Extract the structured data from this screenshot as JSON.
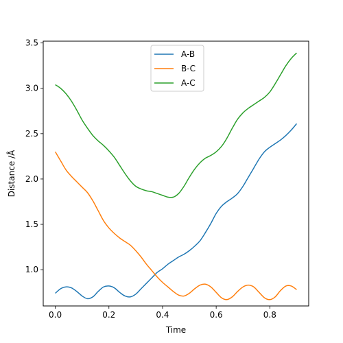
{
  "chart_data": {
    "type": "line",
    "title": "",
    "xlabel": "Time",
    "ylabel": "Distance /Å",
    "xlim": [
      -0.045,
      0.945
    ],
    "ylim": [
      0.6,
      3.52
    ],
    "xticks": [
      0.0,
      0.2,
      0.4,
      0.6,
      0.8
    ],
    "xtick_labels": [
      "0.0",
      "0.2",
      "0.4",
      "0.6",
      "0.8"
    ],
    "yticks": [
      1.0,
      1.5,
      2.0,
      2.5,
      3.0,
      3.5
    ],
    "ytick_labels": [
      "1.0",
      "1.5",
      "2.0",
      "2.5",
      "3.0",
      "3.5"
    ],
    "grid": false,
    "legend_position": "upper-center",
    "series": [
      {
        "name": "A-B",
        "color": "#1f77b4",
        "x": [
          0.0,
          0.02,
          0.04,
          0.06,
          0.08,
          0.1,
          0.12,
          0.14,
          0.16,
          0.18,
          0.2,
          0.22,
          0.24,
          0.26,
          0.28,
          0.3,
          0.32,
          0.34,
          0.36,
          0.38,
          0.4,
          0.42,
          0.44,
          0.46,
          0.48,
          0.5,
          0.52,
          0.54,
          0.56,
          0.58,
          0.6,
          0.62,
          0.64,
          0.66,
          0.68,
          0.7,
          0.72,
          0.74,
          0.76,
          0.78,
          0.8,
          0.82,
          0.84,
          0.86,
          0.88,
          0.9
        ],
        "y": [
          0.74,
          0.79,
          0.81,
          0.8,
          0.76,
          0.71,
          0.68,
          0.7,
          0.76,
          0.81,
          0.82,
          0.8,
          0.75,
          0.71,
          0.7,
          0.73,
          0.79,
          0.85,
          0.91,
          0.97,
          1.01,
          1.06,
          1.1,
          1.14,
          1.17,
          1.21,
          1.26,
          1.32,
          1.41,
          1.51,
          1.62,
          1.7,
          1.75,
          1.79,
          1.84,
          1.92,
          2.02,
          2.12,
          2.22,
          2.3,
          2.35,
          2.39,
          2.43,
          2.48,
          2.54,
          2.61
        ]
      },
      {
        "name": "B-C",
        "color": "#ff7f0e",
        "x": [
          0.0,
          0.02,
          0.04,
          0.06,
          0.08,
          0.1,
          0.12,
          0.14,
          0.16,
          0.18,
          0.2,
          0.22,
          0.24,
          0.26,
          0.28,
          0.3,
          0.32,
          0.34,
          0.36,
          0.38,
          0.4,
          0.42,
          0.44,
          0.46,
          0.48,
          0.5,
          0.52,
          0.54,
          0.56,
          0.58,
          0.6,
          0.62,
          0.64,
          0.66,
          0.68,
          0.7,
          0.72,
          0.74,
          0.76,
          0.78,
          0.8,
          0.82,
          0.84,
          0.86,
          0.88,
          0.9
        ],
        "y": [
          2.3,
          2.2,
          2.1,
          2.03,
          1.97,
          1.91,
          1.85,
          1.76,
          1.65,
          1.54,
          1.46,
          1.4,
          1.35,
          1.31,
          1.27,
          1.21,
          1.14,
          1.06,
          0.99,
          0.92,
          0.86,
          0.81,
          0.76,
          0.72,
          0.71,
          0.74,
          0.79,
          0.83,
          0.84,
          0.81,
          0.75,
          0.69,
          0.67,
          0.7,
          0.76,
          0.81,
          0.83,
          0.81,
          0.75,
          0.69,
          0.67,
          0.7,
          0.77,
          0.82,
          0.82,
          0.78
        ]
      },
      {
        "name": "A-C",
        "color": "#2ca02c",
        "x": [
          0.0,
          0.02,
          0.04,
          0.06,
          0.08,
          0.1,
          0.12,
          0.14,
          0.16,
          0.18,
          0.2,
          0.22,
          0.24,
          0.26,
          0.28,
          0.3,
          0.32,
          0.34,
          0.36,
          0.38,
          0.4,
          0.42,
          0.44,
          0.46,
          0.48,
          0.5,
          0.52,
          0.54,
          0.56,
          0.58,
          0.6,
          0.62,
          0.64,
          0.66,
          0.68,
          0.7,
          0.72,
          0.74,
          0.76,
          0.78,
          0.8,
          0.82,
          0.84,
          0.86,
          0.88,
          0.9
        ],
        "y": [
          3.04,
          3.0,
          2.94,
          2.86,
          2.76,
          2.65,
          2.56,
          2.48,
          2.42,
          2.37,
          2.31,
          2.24,
          2.15,
          2.06,
          1.98,
          1.92,
          1.89,
          1.87,
          1.86,
          1.84,
          1.82,
          1.8,
          1.8,
          1.84,
          1.92,
          2.02,
          2.11,
          2.18,
          2.23,
          2.26,
          2.3,
          2.36,
          2.45,
          2.56,
          2.66,
          2.73,
          2.78,
          2.82,
          2.86,
          2.9,
          2.96,
          3.05,
          3.15,
          3.25,
          3.33,
          3.39
        ]
      }
    ]
  }
}
